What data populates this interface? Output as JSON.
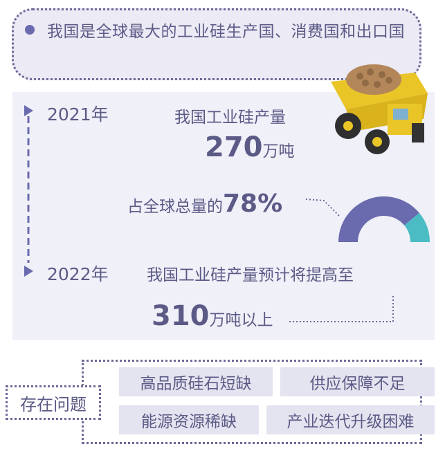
{
  "headline": "我国是全球最大的工业硅生产国、消费国和出口国",
  "timeline": {
    "y2021": {
      "year": "2021年",
      "label": "我国工业硅产量",
      "value": "270",
      "unit": "万吨",
      "share_prefix": "占全球总量的",
      "share_value": "78%",
      "share_fraction": 0.78
    },
    "y2022": {
      "year": "2022年",
      "label": "我国工业硅产量预计将提高至",
      "value": "310",
      "unit": "万吨以上"
    }
  },
  "problems": {
    "title": "存在问题",
    "items": [
      "高品质硅石短缺",
      "供应保障不足",
      "能源资源稀缺",
      "产业迭代升级困难"
    ]
  },
  "colors": {
    "primary": "#6a6aae",
    "secondary": "#4bbcc4",
    "text": "#5b5a86",
    "panel": "#eff0f8"
  }
}
